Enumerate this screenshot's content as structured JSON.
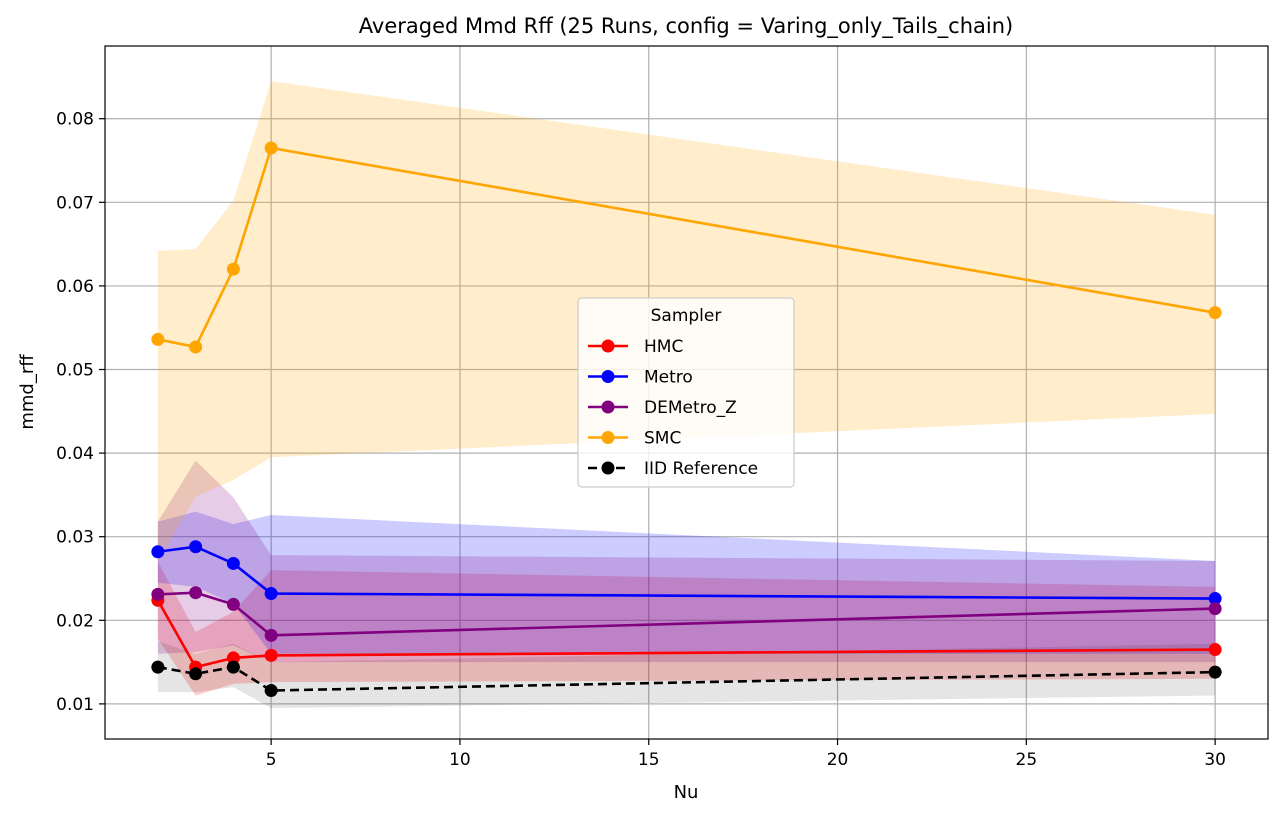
{
  "chart_data": {
    "type": "line",
    "title": "Averaged Mmd Rff (25 Runs, config = Varing_only_Tails_chain)",
    "xlabel": "Nu",
    "ylabel": "mmd_rff",
    "xlim": [
      0.6,
      31.4
    ],
    "ylim": [
      0.0058,
      0.0887
    ],
    "xticks": [
      5,
      10,
      15,
      20,
      25,
      30
    ],
    "yticks": [
      0.01,
      0.02,
      0.03,
      0.04,
      0.05,
      0.06,
      0.07,
      0.08
    ],
    "xtick_labels": [
      "5",
      "10",
      "15",
      "20",
      "25",
      "30"
    ],
    "ytick_labels": [
      "0.01",
      "0.02",
      "0.03",
      "0.04",
      "0.05",
      "0.06",
      "0.07",
      "0.08"
    ],
    "grid": true,
    "legend": {
      "title": "Sampler",
      "placement": "center"
    },
    "x": [
      2,
      3,
      4,
      5,
      30
    ],
    "series": [
      {
        "name": "HMC",
        "color": "#ff0000",
        "style": "solid",
        "values": [
          0.0224,
          0.0144,
          0.0155,
          0.0158,
          0.0165
        ],
        "lower": [
          0.0178,
          0.011,
          0.0124,
          0.0126,
          0.013
        ],
        "upper": [
          0.027,
          0.0186,
          0.021,
          0.026,
          0.024
        ]
      },
      {
        "name": "Metro",
        "color": "#0000ff",
        "style": "solid",
        "values": [
          0.0282,
          0.0288,
          0.0268,
          0.0232,
          0.0226
        ],
        "lower": [
          0.0245,
          0.024,
          0.022,
          0.016,
          0.016
        ],
        "upper": [
          0.0318,
          0.033,
          0.0315,
          0.0326,
          0.0271
        ]
      },
      {
        "name": "DEMetro_Z",
        "color": "#800080",
        "style": "solid",
        "values": [
          0.0231,
          0.0233,
          0.0219,
          0.0182,
          0.0214
        ],
        "lower": [
          0.016,
          0.0162,
          0.017,
          0.015,
          0.015
        ],
        "upper": [
          0.0318,
          0.0391,
          0.0347,
          0.0278,
          0.0271
        ]
      },
      {
        "name": "SMC",
        "color": "#ffa500",
        "style": "solid",
        "values": [
          0.0536,
          0.0527,
          0.062,
          0.0765,
          0.0568
        ],
        "lower": [
          0.027,
          0.0348,
          0.0368,
          0.0395,
          0.0447
        ],
        "upper": [
          0.0642,
          0.0644,
          0.0702,
          0.0845,
          0.0685
        ]
      },
      {
        "name": "IID Reference",
        "color": "#000000",
        "style": "dashed",
        "values": [
          0.0144,
          0.0136,
          0.0144,
          0.0116,
          0.0138
        ],
        "lower": [
          0.0114,
          0.0114,
          0.012,
          0.0095,
          0.011
        ],
        "upper": [
          0.0175,
          0.016,
          0.0172,
          0.015,
          0.0172
        ]
      }
    ]
  }
}
